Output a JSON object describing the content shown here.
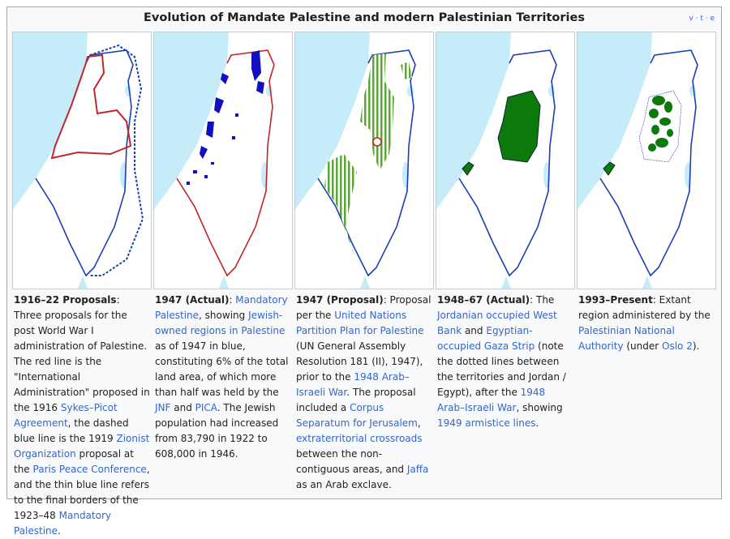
{
  "title": "Evolution of Mandate Palestine and modern Palestinian Territories",
  "navbar": "v · t · e",
  "panels": [
    {
      "heading": "1916–22 Proposals",
      "caption": [
        ": Three proposals for the post World War I administration of Palestine. The red line is the \"International Administration\" proposed in the 1916 ",
        {
          "link": "Sykes–Picot Agreement"
        },
        ", the dashed blue line is the 1919 ",
        {
          "link": "Zionist Organization"
        },
        " proposal at the ",
        {
          "link": "Paris Peace Conference"
        },
        ", and the thin blue line refers to the final borders of the 1923–48 ",
        {
          "link": "Mandatory Palestine"
        },
        "."
      ]
    },
    {
      "heading": "1947 (Actual)",
      "caption": [
        ": ",
        {
          "link": "Mandatory Palestine"
        },
        ", showing ",
        {
          "link": "Jewish-owned regions in Palestine"
        },
        " as of 1947 in blue, constituting 6% of the total land area, of which more than half was held by the ",
        {
          "link": "JNF"
        },
        " and ",
        {
          "link": "PICA"
        },
        ". The Jewish population had increased from 83,790 in 1922 to 608,000 in 1946."
      ]
    },
    {
      "heading": "1947 (Proposal)",
      "caption": [
        ": Proposal per the ",
        {
          "link": "United Nations Partition Plan for Palestine"
        },
        " (UN General Assembly Resolution 181 (II), 1947), prior to the ",
        {
          "link": "1948 Arab–Israeli War"
        },
        ". The proposal included a ",
        {
          "link": "Corpus Separatum for Jerusalem"
        },
        ", ",
        {
          "link": "extraterritorial crossroads"
        },
        " between the non-contiguous areas, and ",
        {
          "link": "Jaffa"
        },
        " as an Arab exclave."
      ]
    },
    {
      "heading": "1948–67 (Actual)",
      "caption": [
        ": The ",
        {
          "link": "Jordanian occupied West Bank"
        },
        " and ",
        {
          "link": "Egyptian-occupied Gaza Strip"
        },
        " (note the dotted lines between the territories and Jordan / Egypt), after the ",
        {
          "link": "1948 Arab–Israeli War"
        },
        ", showing ",
        {
          "link": "1949 armistice lines"
        },
        "."
      ]
    },
    {
      "heading": "1993–Present",
      "caption": [
        ": Extant region administered by the ",
        {
          "link": "Palestinian National Authority"
        },
        " (under ",
        {
          "link": "Oslo 2"
        },
        ")."
      ]
    }
  ]
}
